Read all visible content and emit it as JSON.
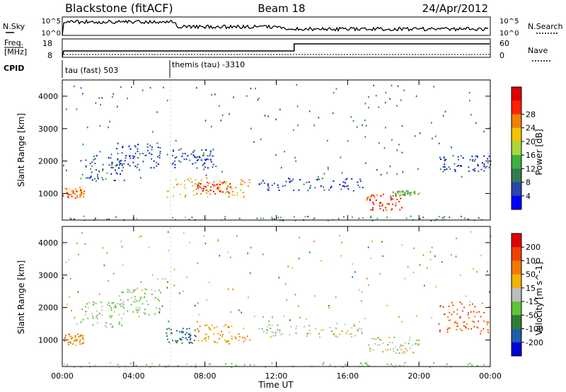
{
  "header": {
    "station": "Blackstone (fitACF)",
    "beam": "Beam 18",
    "date": "24/Apr/2012"
  },
  "noise_panel": {
    "left_label": "N.Sky",
    "right_label": "N.Search",
    "left_ticks": [
      "10^5",
      "10^0"
    ],
    "right_ticks": [
      "10^5",
      "10^0"
    ]
  },
  "freq_panel": {
    "left_label_line1": "Freq.",
    "left_label_line2": "[MHz]",
    "right_label": "Nave",
    "left_ticks": [
      "18",
      "8"
    ],
    "right_ticks": [
      "60",
      "0"
    ]
  },
  "cpid_panel": {
    "label": "CPID",
    "modes": [
      {
        "name": "tau (fast) 503",
        "start_hour": 0
      },
      {
        "name": "themis (tau) -3310",
        "start_hour": 6
      }
    ]
  },
  "x_axis": {
    "label": "Time UT",
    "tick_labels": [
      "00:00",
      "04:00",
      "08:00",
      "12:00",
      "16:00",
      "20:00",
      "00:00"
    ],
    "range_hours": [
      0,
      24
    ]
  },
  "colors": {
    "power_scale": [
      "#0000ff",
      "#2846a8",
      "#2f7d4f",
      "#3cb043",
      "#a8d838",
      "#f2c400",
      "#f08000",
      "#ff2000",
      "#e00000"
    ],
    "velocity_scale": [
      "#0000d8",
      "#1e5fa8",
      "#2e7d32",
      "#5cc438",
      "#bdbdbd",
      "#f0b400",
      "#f07800",
      "#f04000",
      "#e00000"
    ],
    "freq_trace": "#000000"
  },
  "chart_data": [
    {
      "type": "heatmap",
      "title": "",
      "xlabel": "",
      "ylabel": "Slant Range [km]",
      "xlim": [
        0,
        24
      ],
      "ylim": [
        180,
        4500
      ],
      "y_tick_labels": [
        "1000",
        "2000",
        "3000",
        "4000"
      ],
      "colorbar": {
        "label": "Power [dB]",
        "ticks": [
          "4",
          "8",
          "12",
          "16",
          "20",
          "24",
          "28"
        ],
        "range": [
          0,
          30
        ]
      },
      "scatter_regions": [
        {
          "t": [
            0.0,
            1.2
          ],
          "r": [
            850,
            1200
          ],
          "v": 22
        },
        {
          "t": [
            1.0,
            3.5
          ],
          "r": [
            1400,
            2200
          ],
          "v": 6
        },
        {
          "t": [
            3.0,
            5.5
          ],
          "r": [
            1800,
            2600
          ],
          "v": 5
        },
        {
          "t": [
            5.8,
            10.5
          ],
          "r": [
            900,
            1500
          ],
          "v": 18
        },
        {
          "t": [
            7.5,
            9.5
          ],
          "r": [
            1000,
            1400
          ],
          "v": 26
        },
        {
          "t": [
            6.0,
            8.5
          ],
          "r": [
            1800,
            2400
          ],
          "v": 5
        },
        {
          "t": [
            11.0,
            17.0
          ],
          "r": [
            1100,
            1500
          ],
          "v": 5
        },
        {
          "t": [
            17.0,
            19.0
          ],
          "r": [
            500,
            1000
          ],
          "v": 26
        },
        {
          "t": [
            18.5,
            20.0
          ],
          "r": [
            950,
            1100
          ],
          "v": 12
        },
        {
          "t": [
            21.0,
            24.0
          ],
          "r": [
            1700,
            2200
          ],
          "v": 5
        },
        {
          "t": [
            0.0,
            24.0
          ],
          "r": [
            180,
            320
          ],
          "v": 10
        }
      ]
    },
    {
      "type": "heatmap",
      "title": "",
      "xlabel": "Time UT",
      "ylabel": "Slant Range [km]",
      "xlim": [
        0,
        24
      ],
      "ylim": [
        180,
        4500
      ],
      "y_tick_labels": [
        "1000",
        "2000",
        "3000",
        "4000"
      ],
      "colorbar": {
        "label": "Velocity [m s^-1]",
        "ticks": [
          "200",
          "100",
          "50",
          "15",
          "-15",
          "-50",
          "-100",
          "-200"
        ],
        "range": [
          -250,
          250
        ]
      },
      "scatter_regions": [
        {
          "t": [
            0.0,
            1.2
          ],
          "r": [
            850,
            1200
          ],
          "v": -100
        },
        {
          "t": [
            1.0,
            3.5
          ],
          "r": [
            1400,
            2200
          ],
          "v": 40
        },
        {
          "t": [
            3.0,
            5.5
          ],
          "r": [
            1800,
            2600
          ],
          "v": 30
        },
        {
          "t": [
            5.8,
            7.5
          ],
          "r": [
            900,
            1400
          ],
          "v": 150
        },
        {
          "t": [
            7.5,
            10.5
          ],
          "r": [
            900,
            1500
          ],
          "v": -80
        },
        {
          "t": [
            11.0,
            17.0
          ],
          "r": [
            1100,
            1500
          ],
          "v": 0
        },
        {
          "t": [
            17.0,
            20.0
          ],
          "r": [
            600,
            1100
          ],
          "v": 0
        },
        {
          "t": [
            21.0,
            24.0
          ],
          "r": [
            1200,
            2200
          ],
          "v": -150
        },
        {
          "t": [
            0.0,
            24.0
          ],
          "r": [
            180,
            320
          ],
          "v": 30
        }
      ]
    }
  ]
}
